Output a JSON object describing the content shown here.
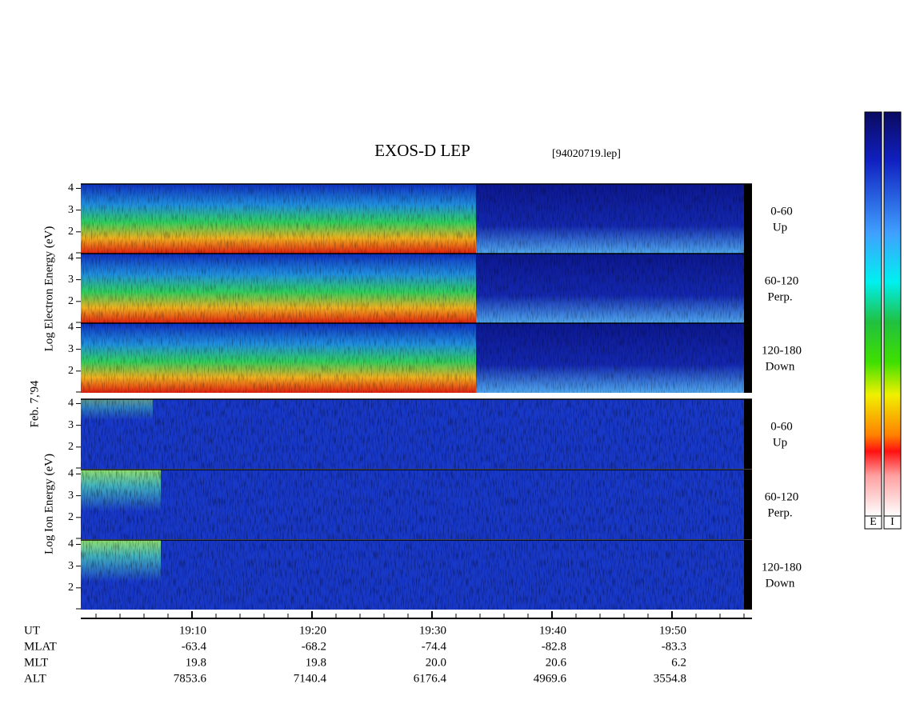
{
  "title": "EXOS-D LEP",
  "file": "[94020719.lep]",
  "date": "Feb. 7,'94",
  "groups": [
    "Log Electron Energy (eV)",
    "Log Ion Energy (eV)"
  ],
  "panels": [
    {
      "pitch": "0-60",
      "dir": "Up"
    },
    {
      "pitch": "60-120",
      "dir": "Perp."
    },
    {
      "pitch": "120-180",
      "dir": "Down"
    }
  ],
  "energy_lim": [
    1,
    4.2
  ],
  "energy_ticks": [
    2,
    3,
    4
  ],
  "orbit": {
    "rows": [
      {
        "name": "UT",
        "values": [
          "19:10",
          "19:20",
          "19:30",
          "19:40",
          "19:50"
        ]
      },
      {
        "name": "MLAT",
        "values": [
          "-63.4",
          "-68.2",
          "-74.4",
          "-82.8",
          "-83.3"
        ]
      },
      {
        "name": "MLT",
        "values": [
          "19.8",
          "19.8",
          "20.0",
          "20.6",
          "6.2"
        ]
      },
      {
        "name": "ALT",
        "values": [
          "7853.6",
          "7140.4",
          "6176.4",
          "4969.6",
          "3554.8"
        ]
      }
    ]
  },
  "colorbars": [
    "E",
    "I"
  ]
}
